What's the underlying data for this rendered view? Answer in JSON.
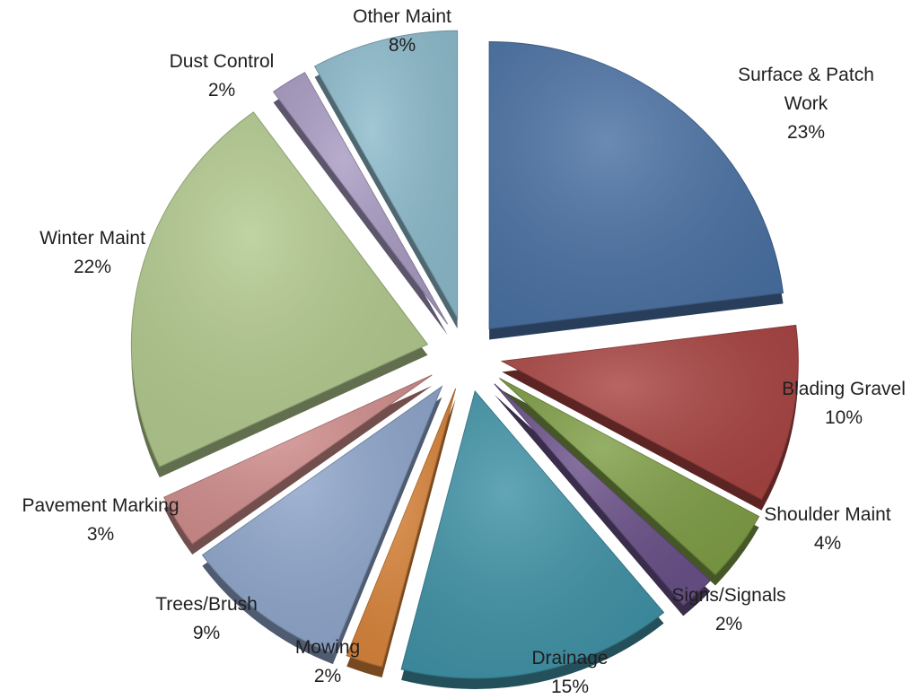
{
  "chart_data": {
    "type": "pie",
    "title": "",
    "style": "3d-exploded",
    "slices": [
      {
        "label": "Surface & Patch Work",
        "label_lines": [
          "Surface & Patch",
          "Work"
        ],
        "percent_text": "23%",
        "value": 23,
        "color": "#4A71A3"
      },
      {
        "label": "Blading Gravel",
        "label_lines": [
          "Blading Gravel"
        ],
        "percent_text": "10%",
        "value": 10,
        "color": "#A84442"
      },
      {
        "label": "Shoulder Maint",
        "label_lines": [
          "Shoulder Maint"
        ],
        "percent_text": "4%",
        "value": 4,
        "color": "#7F9E46"
      },
      {
        "label": "Signs/Signals",
        "label_lines": [
          "Signs/Signals"
        ],
        "percent_text": "2%",
        "value": 2,
        "color": "#6A5189"
      },
      {
        "label": "Drainage",
        "label_lines": [
          "Drainage"
        ],
        "percent_text": "15%",
        "value": 15,
        "color": "#3F92A6"
      },
      {
        "label": "Mowing",
        "label_lines": [
          "Mowing"
        ],
        "percent_text": "2%",
        "value": 2,
        "color": "#D9843A"
      },
      {
        "label": "Trees/Brush",
        "label_lines": [
          "Trees/Brush"
        ],
        "percent_text": "9%",
        "value": 9,
        "color": "#8EA5CB"
      },
      {
        "label": "Pavement Marking",
        "label_lines": [
          "Pavement Marking"
        ],
        "percent_text": "3%",
        "value": 3,
        "color": "#D08D8C"
      },
      {
        "label": "Winter Maint",
        "label_lines": [
          "Winter Maint"
        ],
        "percent_text": "22%",
        "value": 22,
        "color": "#B2C98E"
      },
      {
        "label": "Dust Control",
        "label_lines": [
          "Dust Control"
        ],
        "percent_text": "2%",
        "value": 2,
        "color": "#A89BC2"
      },
      {
        "label": "Other Maint",
        "label_lines": [
          "Other Maint"
        ],
        "percent_text": "8%",
        "value": 8,
        "color": "#8DBBCC"
      }
    ]
  }
}
